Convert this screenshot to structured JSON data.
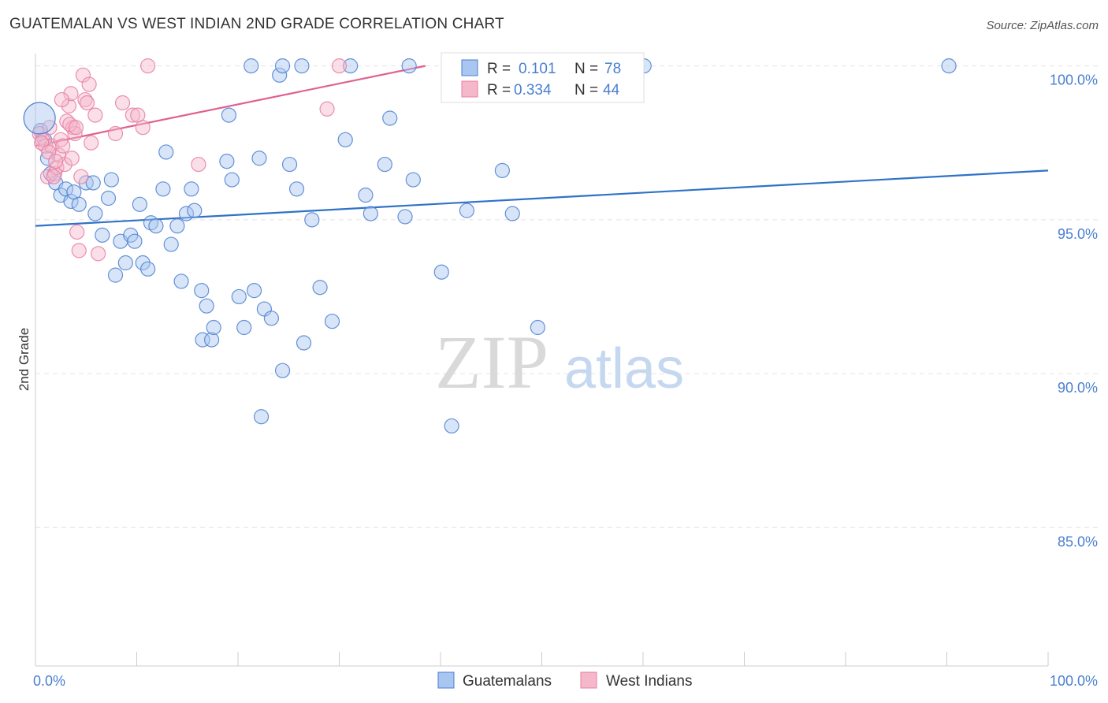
{
  "title": "GUATEMALAN VS WEST INDIAN 2ND GRADE CORRELATION CHART",
  "source": "Source: ZipAtlas.com",
  "watermark": {
    "zip": "ZIP",
    "atlas": "atlas"
  },
  "colors": {
    "blue": "#4a7fd0",
    "blue_fill": "#a8c6ef",
    "blue_line": "#2f72c8",
    "pink": "#e87ca0",
    "pink_fill": "#f5b8cb",
    "pink_line": "#e0608f"
  },
  "chart_data": {
    "type": "scatter",
    "ylabel": "2nd Grade",
    "xlim": [
      0,
      100
    ],
    "ylim": [
      80.5,
      100.4
    ],
    "y_ticks": [
      {
        "value": 100,
        "label": "100.0%"
      },
      {
        "value": 95,
        "label": "95.0%"
      },
      {
        "value": 90,
        "label": "90.0%"
      },
      {
        "value": 85,
        "label": "85.0%"
      }
    ],
    "x_tick_labels": {
      "left": "0.0%",
      "right": "100.0%"
    },
    "grid": true,
    "legend_position": "top-center",
    "stats": [
      {
        "r_label": "R =",
        "r_value": "0.101",
        "n_label": "N =",
        "n_value": "78"
      },
      {
        "r_label": "R =",
        "r_value": "0.334",
        "n_label": "N =",
        "n_value": "44"
      }
    ],
    "series": [
      {
        "name": "Guatemalans",
        "color": "#4a7fd0",
        "trend": [
          [
            0,
            94.8
          ],
          [
            100,
            96.6
          ]
        ],
        "points": [
          [
            0.5,
            97.9
          ],
          [
            1.2,
            97.0
          ],
          [
            1.5,
            96.5
          ],
          [
            2.0,
            96.2
          ],
          [
            2.5,
            95.8
          ],
          [
            3.0,
            96.0
          ],
          [
            3.5,
            95.6
          ],
          [
            3.8,
            95.9
          ],
          [
            4.3,
            95.5
          ],
          [
            5.0,
            96.2
          ],
          [
            5.7,
            96.2
          ],
          [
            5.9,
            95.2
          ],
          [
            6.6,
            94.5
          ],
          [
            7.2,
            95.7
          ],
          [
            7.5,
            96.3
          ],
          [
            7.9,
            93.2
          ],
          [
            8.4,
            94.3
          ],
          [
            8.9,
            93.6
          ],
          [
            9.4,
            94.5
          ],
          [
            9.8,
            94.3
          ],
          [
            10.3,
            95.5
          ],
          [
            10.6,
            93.6
          ],
          [
            11.1,
            93.4
          ],
          [
            11.4,
            94.9
          ],
          [
            11.9,
            94.8
          ],
          [
            12.9,
            97.2
          ],
          [
            12.6,
            96.0
          ],
          [
            13.4,
            94.2
          ],
          [
            14.0,
            94.8
          ],
          [
            14.4,
            93.0
          ],
          [
            14.9,
            95.2
          ],
          [
            15.4,
            96.0
          ],
          [
            15.7,
            95.3
          ],
          [
            16.4,
            92.7
          ],
          [
            16.9,
            92.2
          ],
          [
            16.5,
            91.1
          ],
          [
            17.4,
            91.1
          ],
          [
            17.6,
            91.5
          ],
          [
            18.9,
            96.9
          ],
          [
            19.1,
            98.4
          ],
          [
            19.4,
            96.3
          ],
          [
            20.1,
            92.5
          ],
          [
            20.6,
            91.5
          ],
          [
            21.6,
            92.7
          ],
          [
            22.1,
            97.0
          ],
          [
            22.6,
            92.1
          ],
          [
            23.3,
            91.8
          ],
          [
            24.1,
            99.7
          ],
          [
            24.4,
            100.0
          ],
          [
            25.1,
            96.8
          ],
          [
            25.8,
            96.0
          ],
          [
            26.3,
            100.0
          ],
          [
            26.5,
            91.0
          ],
          [
            27.3,
            95.0
          ],
          [
            28.1,
            92.8
          ],
          [
            29.3,
            91.7
          ],
          [
            30.6,
            97.6
          ],
          [
            31.1,
            100.0
          ],
          [
            32.6,
            95.8
          ],
          [
            33.1,
            95.2
          ],
          [
            34.5,
            96.8
          ],
          [
            35.0,
            98.3
          ],
          [
            36.5,
            95.1
          ],
          [
            37.3,
            96.3
          ],
          [
            36.9,
            100.0
          ],
          [
            40.1,
            93.3
          ],
          [
            41.1,
            88.3
          ],
          [
            42.6,
            95.3
          ],
          [
            46.1,
            96.6
          ],
          [
            47.1,
            95.2
          ],
          [
            49.6,
            91.5
          ],
          [
            55.3,
            100.0
          ],
          [
            60.1,
            100.0
          ],
          [
            90.2,
            100.0
          ],
          [
            21.3,
            100.0
          ],
          [
            22.3,
            88.6
          ],
          [
            24.4,
            90.1
          ],
          [
            0.9,
            97.6
          ]
        ]
      },
      {
        "name": "West Indians",
        "color": "#e87ca0",
        "trend": [
          [
            0,
            97.4
          ],
          [
            38.5,
            100.0
          ]
        ],
        "points": [
          [
            0.4,
            97.8
          ],
          [
            0.7,
            97.6
          ],
          [
            1.0,
            97.4
          ],
          [
            1.2,
            96.4
          ],
          [
            1.4,
            98.0
          ],
          [
            1.6,
            97.4
          ],
          [
            1.9,
            96.5
          ],
          [
            2.1,
            96.7
          ],
          [
            2.3,
            97.1
          ],
          [
            2.5,
            97.6
          ],
          [
            2.7,
            97.4
          ],
          [
            2.9,
            96.8
          ],
          [
            3.1,
            98.2
          ],
          [
            3.3,
            98.7
          ],
          [
            3.5,
            99.1
          ],
          [
            3.7,
            98.0
          ],
          [
            3.9,
            97.8
          ],
          [
            4.1,
            94.6
          ],
          [
            4.3,
            94.0
          ],
          [
            4.5,
            96.4
          ],
          [
            4.7,
            99.7
          ],
          [
            4.9,
            98.9
          ],
          [
            5.1,
            98.8
          ],
          [
            5.3,
            99.4
          ],
          [
            5.5,
            97.5
          ],
          [
            5.9,
            98.4
          ],
          [
            6.2,
            93.9
          ],
          [
            7.9,
            97.8
          ],
          [
            8.6,
            98.8
          ],
          [
            9.6,
            98.4
          ],
          [
            10.1,
            98.4
          ],
          [
            10.6,
            98.0
          ],
          [
            11.1,
            100.0
          ],
          [
            16.1,
            96.8
          ],
          [
            28.8,
            98.6
          ],
          [
            30.0,
            100.0
          ],
          [
            3.4,
            98.1
          ],
          [
            2.6,
            98.9
          ],
          [
            1.8,
            96.4
          ],
          [
            4.0,
            98.0
          ],
          [
            0.6,
            97.5
          ],
          [
            1.3,
            97.2
          ],
          [
            2.0,
            96.9
          ],
          [
            3.6,
            97.0
          ]
        ]
      }
    ]
  }
}
